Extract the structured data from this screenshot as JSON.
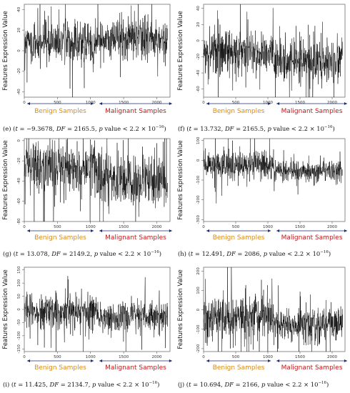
{
  "y_axis_label": "Features Expression Value",
  "benign_label": "Benign Samples",
  "malignant_label": "Malignant Samples",
  "colors": {
    "benign": "#d98a1a",
    "malignant": "#c0171b",
    "series": "#000000"
  },
  "chart_data": [
    {
      "type": "line",
      "id": "e",
      "caption": {
        "panel": "(e)",
        "t": "−9.3678",
        "df": "2165.5",
        "p": "2.2 × 10",
        "exp": "−16"
      },
      "xlim": [
        0,
        2200
      ],
      "xticks": [
        0,
        500,
        1000,
        1500,
        2000
      ],
      "ylim": [
        -45,
        45
      ],
      "yticks": [
        -40,
        -20,
        0,
        20,
        40
      ],
      "benign": {
        "x_range": [
          0,
          1090
        ],
        "mean": 7,
        "spread": 10,
        "spikes": 14
      },
      "malignant": {
        "x_range": [
          1090,
          2166
        ],
        "mean": 12,
        "spread": 10,
        "spikes": 12
      }
    },
    {
      "type": "line",
      "id": "f",
      "caption": {
        "panel": "(f)",
        "t": "13.732",
        "df": "2165.5",
        "p": "2.2 × 10",
        "exp": "−16"
      },
      "xlim": [
        0,
        2200
      ],
      "xticks": [
        0,
        500,
        1000,
        1500,
        2000
      ],
      "ylim": [
        -70,
        45
      ],
      "yticks": [
        -60,
        -40,
        -20,
        0,
        20,
        40
      ],
      "benign": {
        "x_range": [
          0,
          1090
        ],
        "mean": -14,
        "spread": 14,
        "spikes": 16
      },
      "malignant": {
        "x_range": [
          1090,
          2166
        ],
        "mean": -25,
        "spread": 13,
        "spikes": 14
      }
    },
    {
      "type": "line",
      "id": "g",
      "caption": {
        "panel": "(g)",
        "t": "13.078",
        "df": "2149.2",
        "p": "2.2 × 10",
        "exp": "−16"
      },
      "xlim": [
        0,
        2200
      ],
      "xticks": [
        0,
        500,
        1000,
        1500,
        2000
      ],
      "ylim": [
        -80,
        2
      ],
      "yticks": [
        -80,
        -60,
        -40,
        -20,
        0
      ],
      "benign": {
        "x_range": [
          0,
          1090
        ],
        "mean": -26,
        "spread": 13,
        "spikes": 12
      },
      "malignant": {
        "x_range": [
          1090,
          2166
        ],
        "mean": -38,
        "spread": 13,
        "spikes": 12
      }
    },
    {
      "type": "line",
      "id": "h",
      "caption": {
        "panel": "(h)",
        "t": "12.491",
        "df": "2086",
        "p": "2.2 × 10",
        "exp": "−16"
      },
      "xlim": [
        0,
        2200
      ],
      "xticks": [
        0,
        500,
        1000,
        1500,
        2000
      ],
      "ylim": [
        -310,
        110
      ],
      "yticks": [
        -300,
        -200,
        -100,
        0,
        100
      ],
      "benign": {
        "x_range": [
          0,
          1090
        ],
        "mean": -22,
        "spread": 38,
        "spikes": 12
      },
      "malignant": {
        "x_range": [
          1090,
          2166
        ],
        "mean": -55,
        "spread": 30,
        "spikes": 10
      }
    },
    {
      "type": "line",
      "id": "i",
      "caption": {
        "panel": "(i)",
        "t": "11.425",
        "df": "2134.7",
        "p": "2.2 × 10",
        "exp": "−16"
      },
      "xlim": [
        0,
        2200
      ],
      "xticks": [
        0,
        500,
        1000,
        1500,
        2000
      ],
      "ylim": [
        -160,
        160
      ],
      "yticks": [
        -150,
        -100,
        -50,
        0,
        50,
        100,
        150
      ],
      "benign": {
        "x_range": [
          0,
          1090
        ],
        "mean": -8,
        "spread": 35,
        "spikes": 14
      },
      "malignant": {
        "x_range": [
          1090,
          2166
        ],
        "mean": -25,
        "spread": 30,
        "spikes": 10
      }
    },
    {
      "type": "line",
      "id": "j",
      "caption": {
        "panel": "(j)",
        "t": "10.694",
        "df": "2166",
        "p": "2.2 × 10",
        "exp": "−16"
      },
      "xlim": [
        0,
        2200
      ],
      "xticks": [
        0,
        500,
        1000,
        1500,
        2000
      ],
      "ylim": [
        -215,
        220
      ],
      "yticks": [
        -200,
        -100,
        0,
        100,
        200
      ],
      "benign": {
        "x_range": [
          0,
          1090
        ],
        "mean": -35,
        "spread": 55,
        "spikes": 14
      },
      "malignant": {
        "x_range": [
          1090,
          2166
        ],
        "mean": -75,
        "spread": 45,
        "spikes": 12
      }
    }
  ]
}
